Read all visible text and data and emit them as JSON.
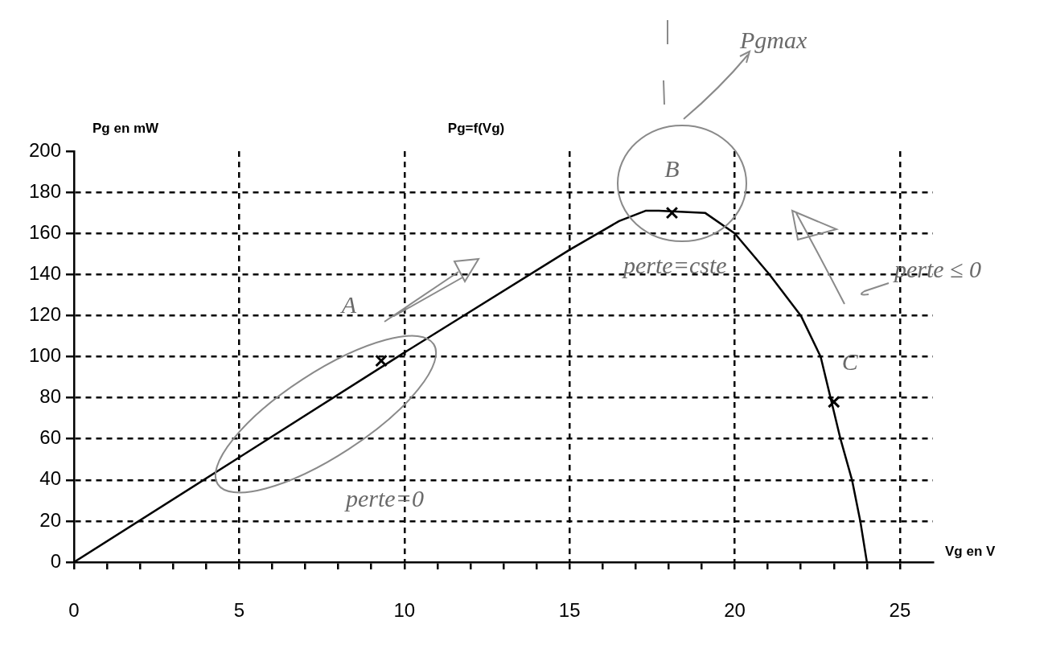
{
  "chart_data": {
    "type": "line",
    "title": "Pg=f(Vg)",
    "xlabel": "Vg en V",
    "ylabel": "Pg en mW",
    "xlim": [
      0,
      26
    ],
    "ylim": [
      0,
      200
    ],
    "xticks": [
      0,
      {
        "value": 1,
        "label": null
      },
      {
        "value": 2,
        "label": null
      },
      {
        "value": 3,
        "label": null
      },
      {
        "value": 4,
        "label": null
      },
      5,
      {
        "value": 6,
        "label": null
      },
      {
        "value": 7,
        "label": null
      },
      {
        "value": 8,
        "label": null
      },
      {
        "value": 9,
        "label": null
      },
      10,
      {
        "value": 11,
        "label": null
      },
      {
        "value": 12,
        "label": null
      },
      {
        "value": 13,
        "label": null
      },
      {
        "value": 14,
        "label": null
      },
      15,
      {
        "value": 16,
        "label": null
      },
      {
        "value": 17,
        "label": null
      },
      {
        "value": 18,
        "label": null
      },
      {
        "value": 19,
        "label": null
      },
      20,
      {
        "value": 21,
        "label": null
      },
      {
        "value": 22,
        "label": null
      },
      {
        "value": 23,
        "label": null
      },
      {
        "value": 24,
        "label": null
      },
      25
    ],
    "yticks": [
      0,
      20,
      40,
      60,
      80,
      100,
      120,
      140,
      160,
      180,
      200
    ],
    "grid": true,
    "legend": false,
    "series": [
      {
        "color": "#000000",
        "marker": "none",
        "x": [
          0,
          5,
          10,
          15,
          16.5,
          17.3,
          17.7,
          19.1,
          20,
          21.05,
          22,
          22.6,
          22.9,
          23.2,
          23.55,
          23.8,
          24
        ],
        "values": [
          0,
          51,
          102,
          152,
          166,
          171,
          171,
          170,
          160,
          140,
          120,
          100,
          80,
          60,
          40,
          20,
          0
        ]
      },
      {
        "type": "scatter",
        "color": "#000000",
        "marker": "cross",
        "x": [
          9.3,
          18.1,
          23
        ],
        "values": [
          98,
          170,
          78
        ]
      }
    ],
    "annotations": [
      {
        "text": "A",
        "x": 9.3,
        "y": 98
      },
      {
        "text": "B",
        "x": 18.1,
        "y": 170
      },
      {
        "text": "C",
        "x": 23,
        "y": 78
      },
      "Pgmax",
      "perte=0",
      "perte=cste",
      "perte ≤ 0"
    ]
  }
}
